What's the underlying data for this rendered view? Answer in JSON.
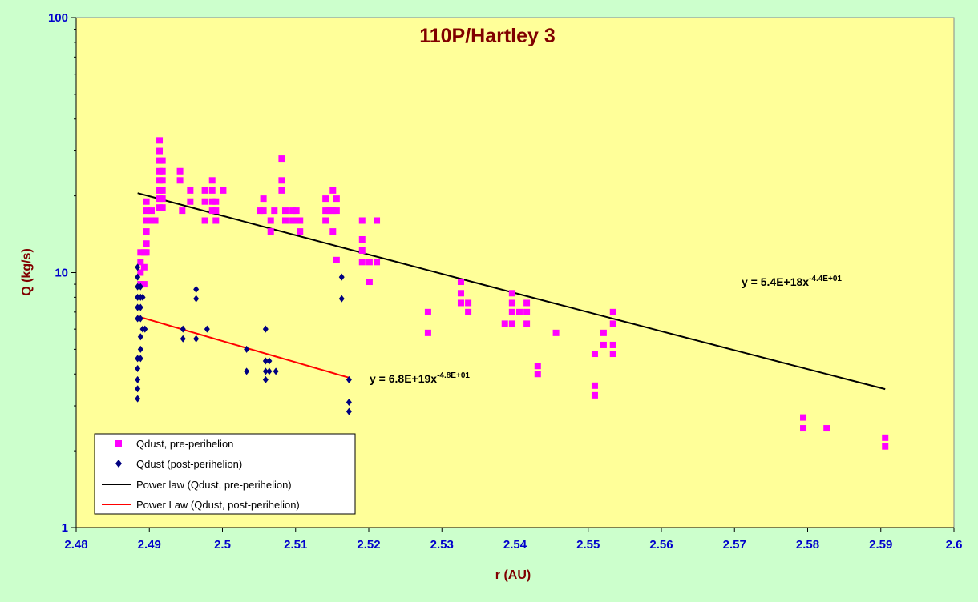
{
  "chart_data": {
    "type": "scatter",
    "title": "110P/Hartley 3",
    "xlabel": "r (AU)",
    "ylabel": "Q (kg/s)",
    "x_scale": "linear",
    "y_scale": "log",
    "xlim": [
      2.48,
      2.6
    ],
    "ylim": [
      1,
      100
    ],
    "x_ticks": [
      "2.48",
      "2.49",
      "2.5",
      "2.51",
      "2.52",
      "2.53",
      "2.54",
      "2.55",
      "2.56",
      "2.57",
      "2.58",
      "2.59",
      "2.6"
    ],
    "y_ticks": [
      "1",
      "10",
      "100"
    ],
    "grid": false,
    "background": "#ffff99",
    "outer_background": "#ccffcc",
    "legend_position": "bottom-left",
    "series": [
      {
        "name": "Qdust, pre-perihelion",
        "marker": "square",
        "color": "#ff00ff",
        "points": [
          [
            2.4888,
            12.0
          ],
          [
            2.4888,
            11.0
          ],
          [
            2.4888,
            10.0
          ],
          [
            2.4888,
            9.0
          ],
          [
            2.4893,
            12.0
          ],
          [
            2.4893,
            10.5
          ],
          [
            2.4893,
            9.0
          ],
          [
            2.4896,
            13.0
          ],
          [
            2.4896,
            14.5
          ],
          [
            2.4896,
            16.0
          ],
          [
            2.4896,
            17.5
          ],
          [
            2.4896,
            19.0
          ],
          [
            2.4896,
            12.0
          ],
          [
            2.4903,
            16.0
          ],
          [
            2.4903,
            17.5
          ],
          [
            2.4908,
            16.0
          ],
          [
            2.4914,
            33.0
          ],
          [
            2.4914,
            30.0
          ],
          [
            2.4914,
            27.5
          ],
          [
            2.4914,
            25.0
          ],
          [
            2.4914,
            23.0
          ],
          [
            2.4914,
            21.0
          ],
          [
            2.4914,
            19.5
          ],
          [
            2.4914,
            18.0
          ],
          [
            2.4918,
            27.5
          ],
          [
            2.4918,
            25.0
          ],
          [
            2.4918,
            23.0
          ],
          [
            2.4918,
            21.0
          ],
          [
            2.4918,
            19.5
          ],
          [
            2.4918,
            18.0
          ],
          [
            2.4942,
            25.0
          ],
          [
            2.4942,
            23.0
          ],
          [
            2.4945,
            17.5
          ],
          [
            2.4956,
            21.0
          ],
          [
            2.4956,
            19.0
          ],
          [
            2.4976,
            21.0
          ],
          [
            2.4976,
            19.0
          ],
          [
            2.4976,
            16.0
          ],
          [
            2.4986,
            23.0
          ],
          [
            2.4986,
            21.0
          ],
          [
            2.4986,
            19.0
          ],
          [
            2.4986,
            17.5
          ],
          [
            2.4991,
            19.0
          ],
          [
            2.4991,
            17.5
          ],
          [
            2.4991,
            16.0
          ],
          [
            2.5001,
            21.0
          ],
          [
            2.5051,
            17.5
          ],
          [
            2.5056,
            19.5
          ],
          [
            2.5056,
            17.5
          ],
          [
            2.5066,
            16.0
          ],
          [
            2.5066,
            14.5
          ],
          [
            2.5071,
            17.5
          ],
          [
            2.5081,
            28.0
          ],
          [
            2.5081,
            23.0
          ],
          [
            2.5081,
            21.0
          ],
          [
            2.5086,
            17.5
          ],
          [
            2.5086,
            16.0
          ],
          [
            2.5096,
            17.5
          ],
          [
            2.5096,
            16.0
          ],
          [
            2.5101,
            17.5
          ],
          [
            2.5101,
            16.0
          ],
          [
            2.5106,
            16.0
          ],
          [
            2.5106,
            14.5
          ],
          [
            2.5141,
            19.5
          ],
          [
            2.5141,
            17.5
          ],
          [
            2.5141,
            16.0
          ],
          [
            2.5146,
            17.5
          ],
          [
            2.5151,
            21.0
          ],
          [
            2.5151,
            17.5
          ],
          [
            2.5151,
            14.5
          ],
          [
            2.5156,
            19.5
          ],
          [
            2.5156,
            17.5
          ],
          [
            2.5156,
            11.2
          ],
          [
            2.5191,
            16.0
          ],
          [
            2.5191,
            13.5
          ],
          [
            2.5191,
            12.2
          ],
          [
            2.5191,
            11.0
          ],
          [
            2.5201,
            11.0
          ],
          [
            2.5201,
            9.2
          ],
          [
            2.5211,
            16.0
          ],
          [
            2.5211,
            11.0
          ],
          [
            2.5281,
            7.0
          ],
          [
            2.5281,
            5.8
          ],
          [
            2.5326,
            9.2
          ],
          [
            2.5326,
            8.3
          ],
          [
            2.5326,
            7.6
          ],
          [
            2.5336,
            7.6
          ],
          [
            2.5336,
            7.0
          ],
          [
            2.5386,
            6.3
          ],
          [
            2.5396,
            8.3
          ],
          [
            2.5396,
            7.6
          ],
          [
            2.5396,
            7.0
          ],
          [
            2.5396,
            6.3
          ],
          [
            2.5406,
            7.0
          ],
          [
            2.5416,
            7.6
          ],
          [
            2.5416,
            7.0
          ],
          [
            2.5416,
            6.3
          ],
          [
            2.5431,
            4.3
          ],
          [
            2.5431,
            4.0
          ],
          [
            2.5456,
            5.8
          ],
          [
            2.5509,
            4.8
          ],
          [
            2.5509,
            3.6
          ],
          [
            2.5509,
            3.3
          ],
          [
            2.5521,
            5.8
          ],
          [
            2.5521,
            5.2
          ],
          [
            2.5534,
            7.0
          ],
          [
            2.5534,
            6.3
          ],
          [
            2.5534,
            5.2
          ],
          [
            2.5534,
            4.8
          ],
          [
            2.5794,
            2.7
          ],
          [
            2.5794,
            2.45
          ],
          [
            2.5826,
            2.45
          ],
          [
            2.5906,
            2.25
          ],
          [
            2.5906,
            2.08
          ]
        ]
      },
      {
        "name": "Qdust (post-perihelion)",
        "marker": "diamond",
        "color": "#000080",
        "points": [
          [
            2.4884,
            10.5
          ],
          [
            2.4884,
            9.6
          ],
          [
            2.4884,
            8.8
          ],
          [
            2.4884,
            8.0
          ],
          [
            2.4884,
            7.3
          ],
          [
            2.4884,
            6.6
          ],
          [
            2.4884,
            4.6
          ],
          [
            2.4884,
            4.2
          ],
          [
            2.4884,
            3.8
          ],
          [
            2.4884,
            3.5
          ],
          [
            2.4884,
            3.2
          ],
          [
            2.4888,
            8.8
          ],
          [
            2.4888,
            8.0
          ],
          [
            2.4888,
            7.3
          ],
          [
            2.4888,
            6.6
          ],
          [
            2.4888,
            5.6
          ],
          [
            2.4888,
            5.0
          ],
          [
            2.4888,
            4.6
          ],
          [
            2.4891,
            8.0
          ],
          [
            2.4891,
            6.0
          ],
          [
            2.4894,
            6.0
          ],
          [
            2.4946,
            6.0
          ],
          [
            2.4946,
            5.5
          ],
          [
            2.4964,
            8.6
          ],
          [
            2.4964,
            7.9
          ],
          [
            2.4964,
            5.5
          ],
          [
            2.4979,
            6.0
          ],
          [
            2.5033,
            5.0
          ],
          [
            2.5033,
            4.1
          ],
          [
            2.5059,
            6.0
          ],
          [
            2.5059,
            4.5
          ],
          [
            2.5059,
            4.1
          ],
          [
            2.5059,
            3.8
          ],
          [
            2.5064,
            4.5
          ],
          [
            2.5064,
            4.1
          ],
          [
            2.5073,
            4.1
          ],
          [
            2.5163,
            9.6
          ],
          [
            2.5163,
            7.9
          ],
          [
            2.5173,
            3.8
          ],
          [
            2.5173,
            3.1
          ],
          [
            2.5173,
            2.85
          ]
        ]
      },
      {
        "name": "Power law (Qdust, pre-perihelion)",
        "type": "line",
        "color": "#000000",
        "x_range": [
          2.4884,
          2.5906
        ],
        "coefficient": 5.4e+18,
        "exponent": -44,
        "equation_label": "y = 5.4E+18x",
        "equation_exponent": "-4.4E+01"
      },
      {
        "name": "Power Law (Qdust, post-perihelion)",
        "type": "line",
        "color": "#ff0000",
        "x_range": [
          2.4884,
          2.5173
        ],
        "coefficient": 6.8e+19,
        "exponent": -48,
        "equation_label": "y = 6.8E+19x",
        "equation_exponent": "-4.8E+01"
      }
    ]
  }
}
